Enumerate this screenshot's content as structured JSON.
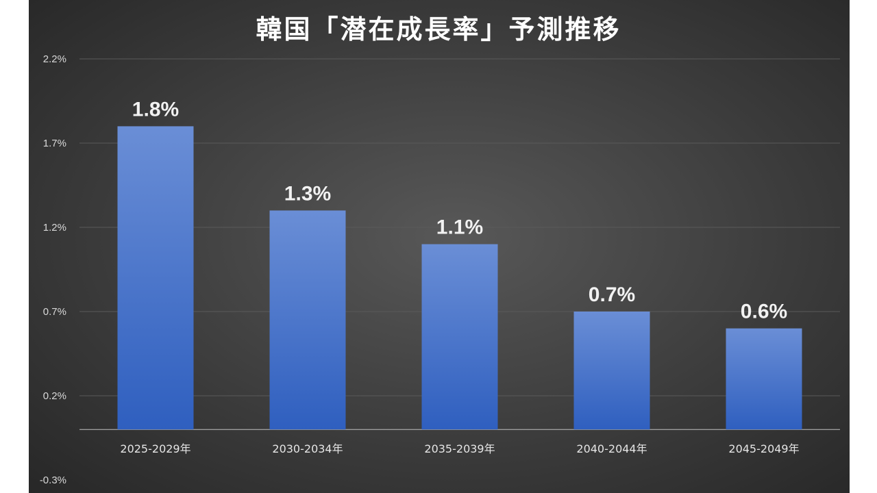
{
  "chart_data": {
    "type": "bar",
    "title": "韓国「潜在成長率」予測推移",
    "categories": [
      "2025-2029年",
      "2030-2034年",
      "2035-2039年",
      "2040-2044年",
      "2045-2049年"
    ],
    "values": [
      1.8,
      1.3,
      1.1,
      0.7,
      0.6
    ],
    "data_labels": [
      "1.8%",
      "1.3%",
      "1.1%",
      "0.7%",
      "0.6%"
    ],
    "y_ticks": [
      -0.3,
      0.2,
      0.7,
      1.2,
      1.7,
      2.2
    ],
    "y_tick_labels": [
      "-0.3%",
      "0.2%",
      "0.7%",
      "1.2%",
      "1.7%",
      "2.2%"
    ],
    "ylim": [
      -0.3,
      2.2
    ],
    "grid": true,
    "legend": "none",
    "colors": {
      "bar_top": "#6a8ed6",
      "bar_bottom": "#2f5fbf"
    }
  }
}
